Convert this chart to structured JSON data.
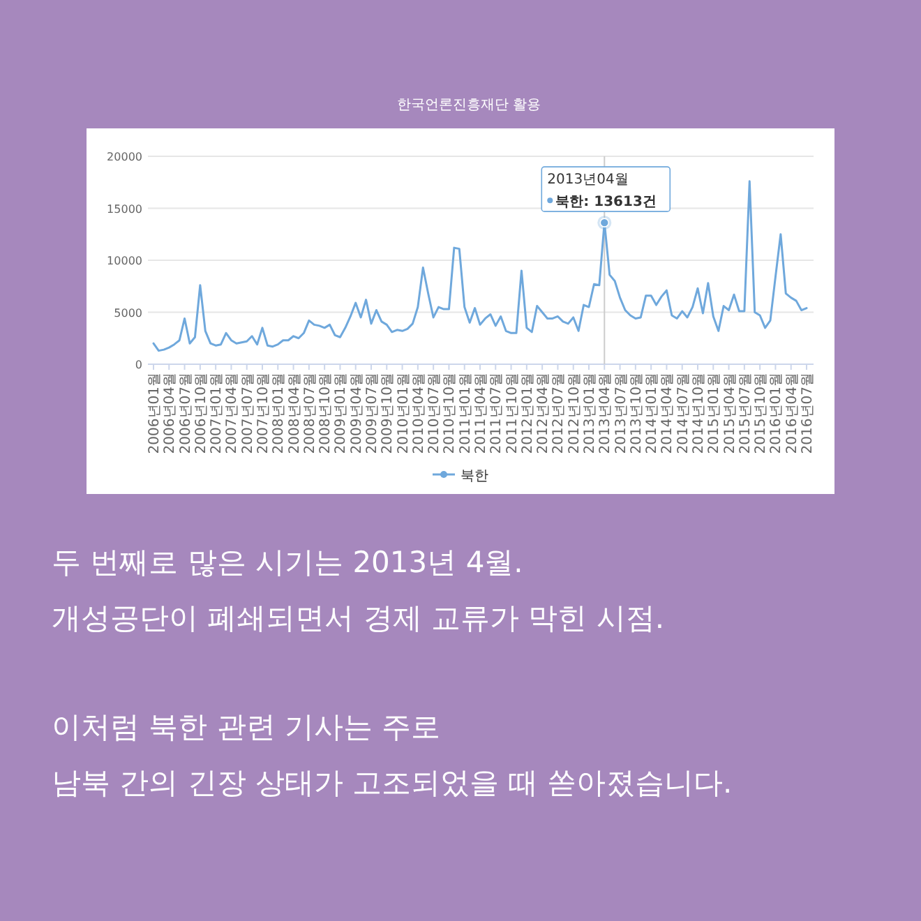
{
  "chart_data": {
    "type": "line",
    "title": "한국언론진흥재단 활용",
    "categories": [
      "2006년01월",
      null,
      null,
      "2006년04월",
      null,
      null,
      "2006년07월",
      null,
      null,
      "2006년10월",
      null,
      null,
      "2007년01월",
      null,
      null,
      "2007년04월",
      null,
      null,
      "2007년07월",
      null,
      null,
      "2007년10월",
      null,
      null,
      "2008년01월",
      null,
      null,
      "2008년04월",
      null,
      null,
      "2008년07월",
      null,
      null,
      "2008년10월",
      null,
      null,
      "2009년01월",
      null,
      null,
      "2009년04월",
      null,
      null,
      "2009년07월",
      null,
      null,
      "2009년10월",
      null,
      null,
      "2010년01월",
      null,
      null,
      "2010년04월",
      null,
      null,
      "2010년07월",
      null,
      null,
      "2010년10월",
      null,
      null,
      "2011년01월",
      null,
      null,
      "2011년04월",
      null,
      null,
      "2011년07월",
      null,
      null,
      "2011년10월",
      null,
      null,
      "2012년01월",
      null,
      null,
      "2012년04월",
      null,
      null,
      "2012년07월",
      null,
      null,
      "2012년10월",
      null,
      null,
      "2013년01월",
      null,
      null,
      "2013년04월",
      null,
      null,
      "2013년07월",
      null,
      null,
      "2013년10월",
      null,
      null,
      "2014년01월",
      null,
      null,
      "2014년04월",
      null,
      null,
      "2014년07월",
      null,
      null,
      "2014년10월",
      null,
      null,
      "2015년01월",
      null,
      null,
      "2015년04월",
      null,
      null,
      "2015년07월",
      null,
      null,
      "2015년10월",
      null,
      null,
      "2016년01월",
      null,
      null,
      "2016년04월",
      null,
      null,
      "2016년07월"
    ],
    "series": [
      {
        "name": "북한",
        "color": "#6fa8dc",
        "values": [
          2000,
          1300,
          1400,
          1600,
          1900,
          2300,
          4400,
          2000,
          2600,
          7600,
          3200,
          2000,
          1800,
          1900,
          3000,
          2300,
          2000,
          2100,
          2200,
          2700,
          1900,
          3500,
          1800,
          1700,
          1900,
          2300,
          2300,
          2700,
          2500,
          3000,
          4200,
          3800,
          3700,
          3500,
          3800,
          2800,
          2600,
          3500,
          4600,
          5900,
          4500,
          6200,
          3900,
          5200,
          4100,
          3800,
          3100,
          3300,
          3200,
          3400,
          3900,
          5500,
          9300,
          6800,
          4500,
          5500,
          5300,
          5300,
          11200,
          11100,
          5500,
          4000,
          5400,
          3800,
          4400,
          4800,
          3700,
          4600,
          3200,
          3000,
          3000,
          9000,
          3500,
          3100,
          5600,
          5000,
          4400,
          4400,
          4600,
          4100,
          3900,
          4500,
          3200,
          5700,
          5500,
          7700,
          7600,
          13613,
          8600,
          8000,
          6400,
          5200,
          4700,
          4400,
          4500,
          6600,
          6600,
          5700,
          6500,
          7100,
          4700,
          4400,
          5100,
          4500,
          5500,
          7300,
          4900,
          7800,
          4600,
          3200,
          5600,
          5200,
          6700,
          5100,
          5100,
          17600,
          5000,
          4700,
          3500,
          4200,
          8400,
          12500,
          6800,
          6400,
          6100,
          5200,
          5400
        ]
      }
    ],
    "ylim": [
      0,
      20000
    ],
    "yticks": [
      0,
      5000,
      10000,
      15000,
      20000
    ],
    "grid": "y",
    "legend": "bottom",
    "marker": "none",
    "line_style": "solid",
    "ref_lines": [
      {
        "axis": "x",
        "value": "2013년04월",
        "color": "#cccccc"
      }
    ],
    "annotations": [
      {
        "text": "2013년04월\n북한: 13613건",
        "x": "2013년04월",
        "y": 13613
      },
      "두 번째로 많은 시기는 2013년 4월.",
      "개성공단이 폐쇄되면서 경제 교류가 막힌 시점.",
      "이처럼 북한 관련 기사는 주로",
      "남북 간의 긴장 상태가 고조되었을 때 쏟아졌습니다."
    ]
  }
}
